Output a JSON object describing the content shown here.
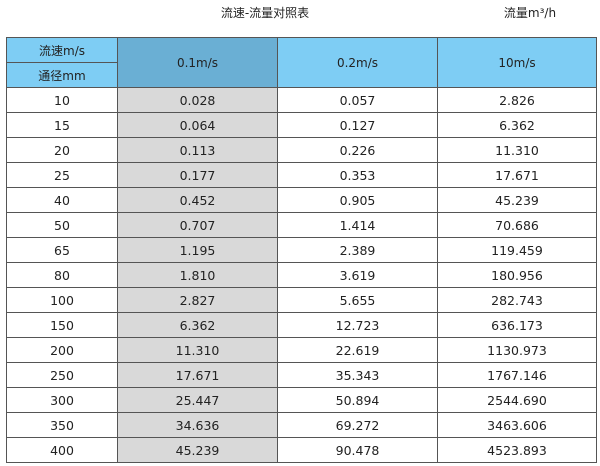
{
  "title": "流速-流量对照表",
  "unit_label": "流量m³/h",
  "header": {
    "velocity_label": "流速m/s",
    "diameter_label": "通径mm",
    "columns": [
      "0.1m/s",
      "0.2m/s",
      "10m/s"
    ]
  },
  "colors": {
    "header": "#7ecdf4",
    "header_highlight": "#6aafd4",
    "column_highlight": "#d9d9d9"
  },
  "rows": [
    {
      "dn": "10",
      "v": [
        "0.028",
        "0.057",
        "2.826"
      ]
    },
    {
      "dn": "15",
      "v": [
        "0.064",
        "0.127",
        "6.362"
      ]
    },
    {
      "dn": "20",
      "v": [
        "0.113",
        "0.226",
        "11.310"
      ]
    },
    {
      "dn": "25",
      "v": [
        "0.177",
        "0.353",
        "17.671"
      ]
    },
    {
      "dn": "40",
      "v": [
        "0.452",
        "0.905",
        "45.239"
      ]
    },
    {
      "dn": "50",
      "v": [
        "0.707",
        "1.414",
        "70.686"
      ]
    },
    {
      "dn": "65",
      "v": [
        "1.195",
        "2.389",
        "119.459"
      ]
    },
    {
      "dn": "80",
      "v": [
        "1.810",
        "3.619",
        "180.956"
      ]
    },
    {
      "dn": "100",
      "v": [
        "2.827",
        "5.655",
        "282.743"
      ]
    },
    {
      "dn": "150",
      "v": [
        "6.362",
        "12.723",
        "636.173"
      ]
    },
    {
      "dn": "200",
      "v": [
        "11.310",
        "22.619",
        "1130.973"
      ]
    },
    {
      "dn": "250",
      "v": [
        "17.671",
        "35.343",
        "1767.146"
      ]
    },
    {
      "dn": "300",
      "v": [
        "25.447",
        "50.894",
        "2544.690"
      ]
    },
    {
      "dn": "350",
      "v": [
        "34.636",
        "69.272",
        "3463.606"
      ]
    },
    {
      "dn": "400",
      "v": [
        "45.239",
        "90.478",
        "4523.893"
      ]
    }
  ]
}
